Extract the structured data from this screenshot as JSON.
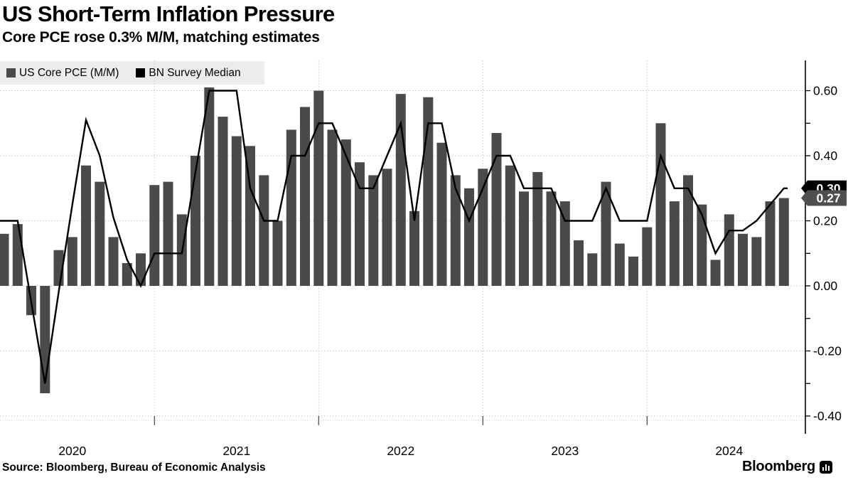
{
  "header": {
    "title": "US Short-Term Inflation Pressure",
    "subtitle": "Core PCE rose 0.3% M/M, matching estimates"
  },
  "legend": {
    "background": "#ececec",
    "items": [
      {
        "label": "US Core PCE (M/M)",
        "swatch": "#4a4a4a"
      },
      {
        "label": "BN Survey Median",
        "swatch": "#000000"
      }
    ]
  },
  "annotations": {
    "survey_last": {
      "label": "0.30",
      "value": 0.3,
      "color": "#000000"
    },
    "bar_last": {
      "label": "0.27",
      "value": 0.27,
      "color": "#4f4f4f"
    }
  },
  "source": {
    "label": "Source: Bloomberg, Bureau of Economic Analysis"
  },
  "branding": {
    "wordmark": "Bloomberg",
    "icon": "bloomberg-mini-bar-chart-icon"
  },
  "chart_data": {
    "type": "bar+line",
    "title": "US Short-Term Inflation Pressure",
    "x_unit": "month",
    "xlabels": [
      "2020",
      "2021",
      "2022",
      "2023",
      "2024"
    ],
    "legend_position": "top-left",
    "grid": "dotted",
    "ylim": [
      -0.45,
      0.69
    ],
    "yticks": {
      "label_min": -0.4,
      "label_max": 0.6,
      "label_step": 0.2,
      "minor_step": 0.1,
      "format_decimals": 2
    },
    "colors": {
      "grid": "#c9c9c9",
      "axis": "#000000",
      "year_tick": "#444444",
      "baseline": "#bbbbbb"
    },
    "months": [
      "2020-01",
      "2020-02",
      "2020-03",
      "2020-04",
      "2020-05",
      "2020-06",
      "2020-07",
      "2020-08",
      "2020-09",
      "2020-10",
      "2020-11",
      "2020-12",
      "2021-01",
      "2021-02",
      "2021-03",
      "2021-04",
      "2021-05",
      "2021-06",
      "2021-07",
      "2021-08",
      "2021-09",
      "2021-10",
      "2021-11",
      "2021-12",
      "2022-01",
      "2022-02",
      "2022-03",
      "2022-04",
      "2022-05",
      "2022-06",
      "2022-07",
      "2022-08",
      "2022-09",
      "2022-10",
      "2022-11",
      "2022-12",
      "2023-01",
      "2023-02",
      "2023-03",
      "2023-04",
      "2023-05",
      "2023-06",
      "2023-07",
      "2023-08",
      "2023-09",
      "2023-10",
      "2023-11",
      "2023-12",
      "2024-01",
      "2024-02",
      "2024-03",
      "2024-04",
      "2024-05",
      "2024-06",
      "2024-07",
      "2024-08",
      "2024-09",
      "2024-10"
    ],
    "series": [
      {
        "name": "US Core PCE (M/M)",
        "type": "bar",
        "color": "#4a4a4a",
        "values": [
          0.16,
          0.19,
          -0.09,
          -0.33,
          0.11,
          0.15,
          0.37,
          0.32,
          0.15,
          0.07,
          0.1,
          0.31,
          0.32,
          0.22,
          0.4,
          0.61,
          0.52,
          0.46,
          0.43,
          0.34,
          0.2,
          0.48,
          0.55,
          0.6,
          0.48,
          0.45,
          0.38,
          0.34,
          0.36,
          0.59,
          0.23,
          0.58,
          0.44,
          0.34,
          0.3,
          0.36,
          0.47,
          0.37,
          0.29,
          0.35,
          0.29,
          0.26,
          0.14,
          0.1,
          0.32,
          0.13,
          0.09,
          0.18,
          0.5,
          0.26,
          0.34,
          0.25,
          0.08,
          0.22,
          0.16,
          0.15,
          0.26,
          0.27
        ]
      },
      {
        "name": "BN Survey Median",
        "type": "line",
        "color": "#000000",
        "values": [
          0.2,
          0.2,
          -0.05,
          -0.3,
          -0.02,
          0.25,
          0.51,
          0.4,
          0.21,
          0.08,
          0.0,
          0.1,
          0.1,
          0.1,
          0.35,
          0.6,
          0.6,
          0.6,
          0.3,
          0.2,
          0.2,
          0.4,
          0.4,
          0.5,
          0.5,
          0.4,
          0.3,
          0.3,
          0.4,
          0.5,
          0.2,
          0.5,
          0.5,
          0.3,
          0.2,
          0.3,
          0.4,
          0.4,
          0.3,
          0.3,
          0.3,
          0.2,
          0.2,
          0.2,
          0.3,
          0.2,
          0.2,
          0.2,
          0.4,
          0.3,
          0.3,
          0.22,
          0.1,
          0.17,
          0.17,
          0.2,
          0.25,
          0.3
        ]
      }
    ]
  }
}
